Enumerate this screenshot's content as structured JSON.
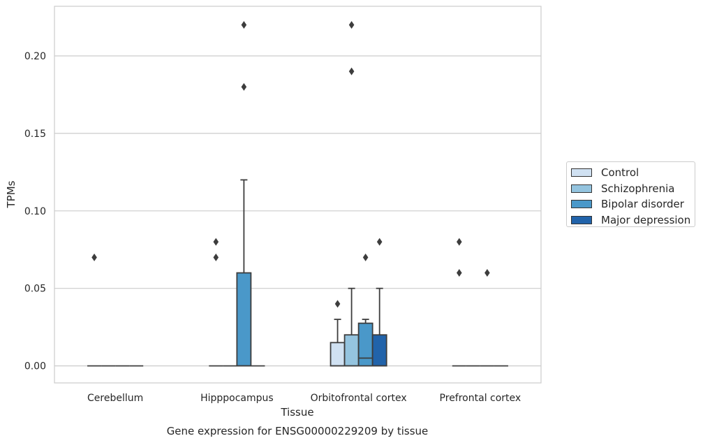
{
  "chart_data": {
    "type": "box",
    "title": "Gene expression for ENSG00000229209 by tissue",
    "xlabel": "Tissue",
    "ylabel": "TPMs",
    "ylim": [
      -0.011,
      0.232
    ],
    "yticks": [
      0.0,
      0.05,
      0.1,
      0.15,
      0.2
    ],
    "ytick_labels": [
      "0.00",
      "0.05",
      "0.10",
      "0.15",
      "0.20"
    ],
    "grid": true,
    "legend_position": "right",
    "categories": [
      "Cerebellum",
      "Hipppocampus",
      "Orbitofrontal cortex",
      "Prefrontal cortex"
    ],
    "series": [
      {
        "name": "Control",
        "color": "#d0e1f2",
        "boxes": [
          {
            "q1": 0,
            "median": 0,
            "q3": 0,
            "whisker_low": 0,
            "whisker_high": 0,
            "outliers": [
              0.07
            ]
          },
          {
            "q1": 0,
            "median": 0,
            "q3": 0,
            "whisker_low": 0,
            "whisker_high": 0,
            "outliers": [
              0.07,
              0.08
            ]
          },
          {
            "q1": 0,
            "median": 0,
            "q3": 0.015,
            "whisker_low": 0,
            "whisker_high": 0.03,
            "outliers": [
              0.04
            ]
          },
          {
            "q1": 0,
            "median": 0,
            "q3": 0,
            "whisker_low": 0,
            "whisker_high": 0,
            "outliers": [
              0.06,
              0.08
            ]
          }
        ]
      },
      {
        "name": "Schizophrenia",
        "color": "#94c4df",
        "boxes": [
          {
            "q1": 0,
            "median": 0,
            "q3": 0,
            "whisker_low": 0,
            "whisker_high": 0,
            "outliers": []
          },
          {
            "q1": 0,
            "median": 0,
            "q3": 0,
            "whisker_low": 0,
            "whisker_high": 0,
            "outliers": []
          },
          {
            "q1": 0,
            "median": 0,
            "q3": 0.02,
            "whisker_low": 0,
            "whisker_high": 0.05,
            "outliers": [
              0.19,
              0.22
            ]
          },
          {
            "q1": 0,
            "median": 0,
            "q3": 0,
            "whisker_low": 0,
            "whisker_high": 0,
            "outliers": []
          }
        ]
      },
      {
        "name": "Bipolar disorder",
        "color": "#4a98c9",
        "boxes": [
          {
            "q1": 0,
            "median": 0,
            "q3": 0,
            "whisker_low": 0,
            "whisker_high": 0,
            "outliers": []
          },
          {
            "q1": 0,
            "median": 0,
            "q3": 0.06,
            "whisker_low": 0,
            "whisker_high": 0.12,
            "outliers": [
              0.18,
              0.22
            ]
          },
          {
            "q1": 0,
            "median": 0.005,
            "q3": 0.0275,
            "whisker_low": 0,
            "whisker_high": 0.03,
            "outliers": [
              0.07
            ]
          },
          {
            "q1": 0,
            "median": 0,
            "q3": 0,
            "whisker_low": 0,
            "whisker_high": 0,
            "outliers": [
              0.06
            ]
          }
        ]
      },
      {
        "name": "Major depression",
        "color": "#2163aa",
        "boxes": [
          {
            "q1": 0,
            "median": 0,
            "q3": 0,
            "whisker_low": 0,
            "whisker_high": 0,
            "outliers": []
          },
          {
            "q1": 0,
            "median": 0,
            "q3": 0,
            "whisker_low": 0,
            "whisker_high": 0,
            "outliers": []
          },
          {
            "q1": 0,
            "median": 0,
            "q3": 0.02,
            "whisker_low": 0,
            "whisker_high": 0.05,
            "outliers": [
              0.08
            ]
          },
          {
            "q1": 0,
            "median": 0,
            "q3": 0,
            "whisker_low": 0,
            "whisker_high": 0,
            "outliers": []
          }
        ]
      }
    ]
  }
}
